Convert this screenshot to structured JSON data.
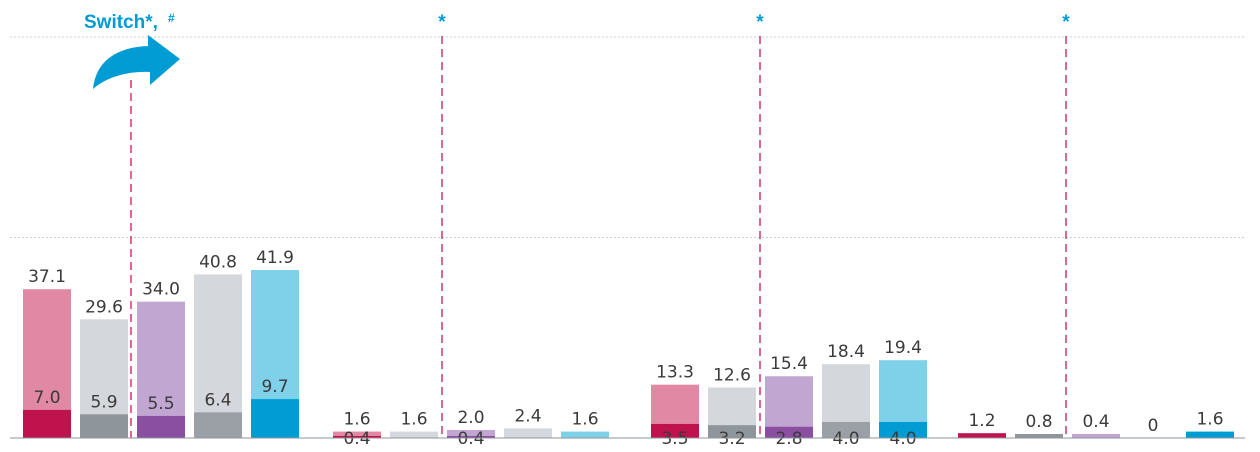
{
  "chart_data": {
    "type": "bar",
    "title": "",
    "xlabel": "",
    "ylabel": "",
    "ylim": [
      0,
      100
    ],
    "grid": true,
    "legend": "none",
    "groups": [
      {
        "bars": [
          {
            "total": 37.1,
            "inner": 7.0,
            "total_label": "37.1",
            "inner_label": "7.0",
            "color_light": "#e088a4",
            "color_dark": "#c0134e"
          },
          {
            "total": 29.6,
            "inner": 5.9,
            "total_label": "29.6",
            "inner_label": "5.9",
            "color_light": "#d4d7db",
            "color_dark": "#8e959b"
          },
          {
            "total": 34.0,
            "inner": 5.5,
            "total_label": "34.0",
            "inner_label": "5.5",
            "color_light": "#c2a6d2",
            "color_dark": "#8a4fa0"
          },
          {
            "total": 40.8,
            "inner": 6.4,
            "total_label": "40.8",
            "inner_label": "6.4",
            "color_light": "#d4d7db",
            "color_dark": "#9aa0a6"
          },
          {
            "total": 41.9,
            "inner": 9.7,
            "total_label": "41.9",
            "inner_label": "9.7",
            "color_light": "#7fd1ea",
            "color_dark": "#009cd3"
          }
        ]
      },
      {
        "bars": [
          {
            "total": 1.6,
            "inner": 0.4,
            "total_label": "1.6",
            "inner_label": "0.4",
            "color_light": "#e088a4",
            "color_dark": "#c0134e"
          },
          {
            "total": 1.6,
            "inner": null,
            "total_label": "1.6",
            "inner_label": "",
            "color_light": "#d4d7db",
            "color_dark": "#8e959b"
          },
          {
            "total": 2.0,
            "inner": 0.4,
            "total_label": "2.0",
            "inner_label": "0.4",
            "color_light": "#c2a6d2",
            "color_dark": "#8a4fa0"
          },
          {
            "total": 2.4,
            "inner": null,
            "total_label": "2.4",
            "inner_label": "",
            "color_light": "#d4d7db",
            "color_dark": "#9aa0a6"
          },
          {
            "total": 1.6,
            "inner": null,
            "total_label": "1.6",
            "inner_label": "",
            "color_light": "#7fd1ea",
            "color_dark": "#009cd3"
          }
        ]
      },
      {
        "bars": [
          {
            "total": 13.3,
            "inner": 3.5,
            "total_label": "13.3",
            "inner_label": "3.5",
            "color_light": "#e088a4",
            "color_dark": "#c0134e"
          },
          {
            "total": 12.6,
            "inner": 3.2,
            "total_label": "12.6",
            "inner_label": "3.2",
            "color_light": "#d4d7db",
            "color_dark": "#8e959b"
          },
          {
            "total": 15.4,
            "inner": 2.8,
            "total_label": "15.4",
            "inner_label": "2.8",
            "color_light": "#c2a6d2",
            "color_dark": "#8a4fa0"
          },
          {
            "total": 18.4,
            "inner": 4.0,
            "total_label": "18.4",
            "inner_label": "4.0",
            "color_light": "#d4d7db",
            "color_dark": "#9aa0a6"
          },
          {
            "total": 19.4,
            "inner": 4.0,
            "total_label": "19.4",
            "inner_label": "4.0",
            "color_light": "#7fd1ea",
            "color_dark": "#009cd3"
          }
        ]
      },
      {
        "bars": [
          {
            "total": 1.2,
            "inner": null,
            "total_label": "1.2",
            "inner_label": "",
            "color_light": "#c0134e",
            "color_dark": "#c0134e"
          },
          {
            "total": 0.8,
            "inner": null,
            "total_label": "0.8",
            "inner_label": "",
            "color_light": "#8e959b",
            "color_dark": "#8e959b"
          },
          {
            "total": 0.4,
            "inner": null,
            "total_label": "0.4",
            "inner_label": "",
            "color_light": "#c2a6d2",
            "color_dark": "#8a4fa0"
          },
          {
            "total": 0,
            "inner": null,
            "total_label": "0",
            "inner_label": "",
            "color_light": "#9aa0a6",
            "color_dark": "#9aa0a6"
          },
          {
            "total": 1.6,
            "inner": null,
            "total_label": "1.6",
            "inner_label": "",
            "color_light": "#009cd3",
            "color_dark": "#009cd3"
          }
        ]
      }
    ],
    "annotations": {
      "switch_label": "Switch*,",
      "switch_superscript": "#",
      "asterisk": "*"
    }
  },
  "colors": {
    "accent": "#009cd3",
    "divider": "#d7336f",
    "grid": "#c9cdd1",
    "axis": "#8e959b",
    "label_text": "#3a3a3a"
  },
  "icons": {
    "switch_arrow": "curved-arrow-right-icon"
  }
}
